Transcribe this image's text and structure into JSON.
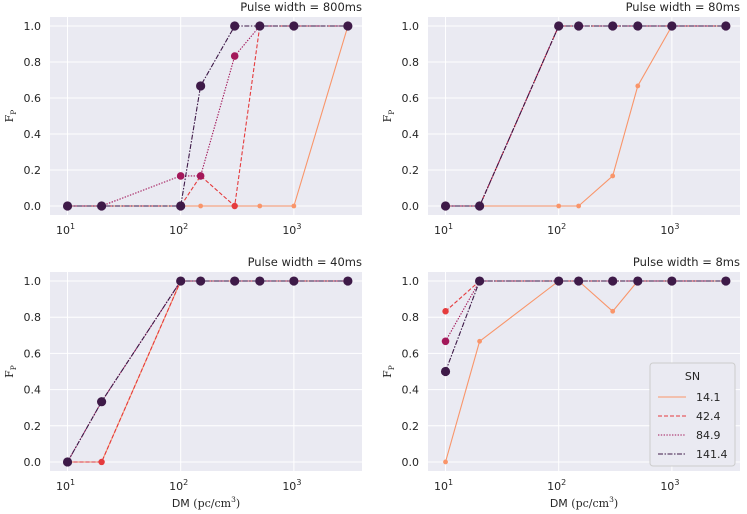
{
  "chart_data": {
    "type": "line",
    "x_values": [
      10,
      20,
      100,
      150,
      300,
      500,
      1000,
      3000
    ],
    "legend": {
      "title": "SN",
      "entries": [
        "14.1",
        "42.4",
        "84.9",
        "141.4"
      ]
    },
    "series_styles": [
      {
        "name": "14.1",
        "color": "#f9956a",
        "dash": "",
        "marker": 2.4
      },
      {
        "name": "42.4",
        "color": "#e53b3d",
        "dash": "4,2",
        "marker": 3.2
      },
      {
        "name": "84.9",
        "color": "#a3185a",
        "dash": "1.4,1.4",
        "marker": 3.8
      },
      {
        "name": "141.4",
        "color": "#3e1a48",
        "dash": "5,1.5,1.5,1.5",
        "marker": 4.6
      }
    ],
    "panels": [
      {
        "title": "Pulse width = 800ms",
        "xlabel": "",
        "ylabel": "F",
        "ylabel_sub": "P",
        "xscale": "log",
        "xlim": [
          7,
          4000
        ],
        "ylim": [
          -0.05,
          1.05
        ],
        "xticks": [
          {
            "base": "10",
            "exp": "1",
            "value": 10
          },
          {
            "base": "10",
            "exp": "2",
            "value": 100
          },
          {
            "base": "10",
            "exp": "3",
            "value": 1000
          }
        ],
        "yticks": [
          "0.0",
          "0.2",
          "0.4",
          "0.6",
          "0.8",
          "1.0"
        ],
        "series": [
          {
            "name": "14.1",
            "values": [
              0,
              0,
              0,
              0,
              0,
              0,
              0,
              1.0
            ]
          },
          {
            "name": "42.4",
            "values": [
              0,
              0,
              0,
              0.167,
              0,
              1.0,
              1.0,
              1.0
            ]
          },
          {
            "name": "84.9",
            "values": [
              0,
              0,
              0.167,
              0.167,
              0.833,
              1.0,
              1.0,
              1.0
            ]
          },
          {
            "name": "141.4",
            "values": [
              0,
              0,
              0,
              0.667,
              1.0,
              1.0,
              1.0,
              1.0
            ]
          }
        ]
      },
      {
        "title": "Pulse width = 80ms",
        "xlabel": "",
        "ylabel": "F",
        "ylabel_sub": "P",
        "xscale": "log",
        "xlim": [
          7,
          4000
        ],
        "ylim": [
          -0.05,
          1.05
        ],
        "xticks": [
          {
            "base": "10",
            "exp": "1",
            "value": 10
          },
          {
            "base": "10",
            "exp": "2",
            "value": 100
          },
          {
            "base": "10",
            "exp": "3",
            "value": 1000
          }
        ],
        "yticks": [
          "0.0",
          "0.2",
          "0.4",
          "0.6",
          "0.8",
          "1.0"
        ],
        "series": [
          {
            "name": "14.1",
            "values": [
              0,
              0,
              0,
              0,
              0.167,
              0.667,
              1.0,
              1.0
            ]
          },
          {
            "name": "42.4",
            "values": [
              0,
              0,
              1.0,
              1.0,
              1.0,
              1.0,
              1.0,
              1.0
            ]
          },
          {
            "name": "84.9",
            "values": [
              0,
              0,
              1.0,
              1.0,
              1.0,
              1.0,
              1.0,
              1.0
            ]
          },
          {
            "name": "141.4",
            "values": [
              0,
              0,
              1.0,
              1.0,
              1.0,
              1.0,
              1.0,
              1.0
            ]
          }
        ]
      },
      {
        "title": "Pulse width = 40ms",
        "xlabel": "DM",
        "xlabel_unit": "(pc/cm",
        "xlabel_unit_sup": "3",
        "xlabel_unit_end": ")",
        "ylabel": "F",
        "ylabel_sub": "P",
        "xscale": "log",
        "xlim": [
          7,
          4000
        ],
        "ylim": [
          -0.05,
          1.05
        ],
        "xticks": [
          {
            "base": "10",
            "exp": "1",
            "value": 10
          },
          {
            "base": "10",
            "exp": "2",
            "value": 100
          },
          {
            "base": "10",
            "exp": "3",
            "value": 1000
          }
        ],
        "yticks": [
          "0.0",
          "0.2",
          "0.4",
          "0.6",
          "0.8",
          "1.0"
        ],
        "series": [
          {
            "name": "14.1",
            "values": [
              0,
              0,
              1.0,
              1.0,
              1.0,
              1.0,
              1.0,
              1.0
            ]
          },
          {
            "name": "42.4",
            "values": [
              0,
              0,
              1.0,
              1.0,
              1.0,
              1.0,
              1.0,
              1.0
            ]
          },
          {
            "name": "84.9",
            "values": [
              0,
              0.333,
              1.0,
              1.0,
              1.0,
              1.0,
              1.0,
              1.0
            ]
          },
          {
            "name": "141.4",
            "values": [
              0,
              0.333,
              1.0,
              1.0,
              1.0,
              1.0,
              1.0,
              1.0
            ]
          }
        ]
      },
      {
        "title": "Pulse width = 8ms",
        "xlabel": "DM",
        "xlabel_unit": "(pc/cm",
        "xlabel_unit_sup": "3",
        "xlabel_unit_end": ")",
        "ylabel": "F",
        "ylabel_sub": "P",
        "xscale": "log",
        "xlim": [
          7,
          4000
        ],
        "ylim": [
          -0.05,
          1.05
        ],
        "xticks": [
          {
            "base": "10",
            "exp": "1",
            "value": 10
          },
          {
            "base": "10",
            "exp": "2",
            "value": 100
          },
          {
            "base": "10",
            "exp": "3",
            "value": 1000
          }
        ],
        "yticks": [
          "0.0",
          "0.2",
          "0.4",
          "0.6",
          "0.8",
          "1.0"
        ],
        "show_legend": true,
        "series": [
          {
            "name": "14.1",
            "values": [
              0,
              0.667,
              1.0,
              1.0,
              0.833,
              1.0,
              1.0,
              1.0
            ]
          },
          {
            "name": "42.4",
            "values": [
              0.833,
              1.0,
              1.0,
              1.0,
              1.0,
              1.0,
              1.0,
              1.0
            ]
          },
          {
            "name": "84.9",
            "values": [
              0.667,
              1.0,
              1.0,
              1.0,
              1.0,
              1.0,
              1.0,
              1.0
            ]
          },
          {
            "name": "141.4",
            "values": [
              0.5,
              1.0,
              1.0,
              1.0,
              1.0,
              1.0,
              1.0,
              1.0
            ]
          }
        ]
      }
    ]
  }
}
